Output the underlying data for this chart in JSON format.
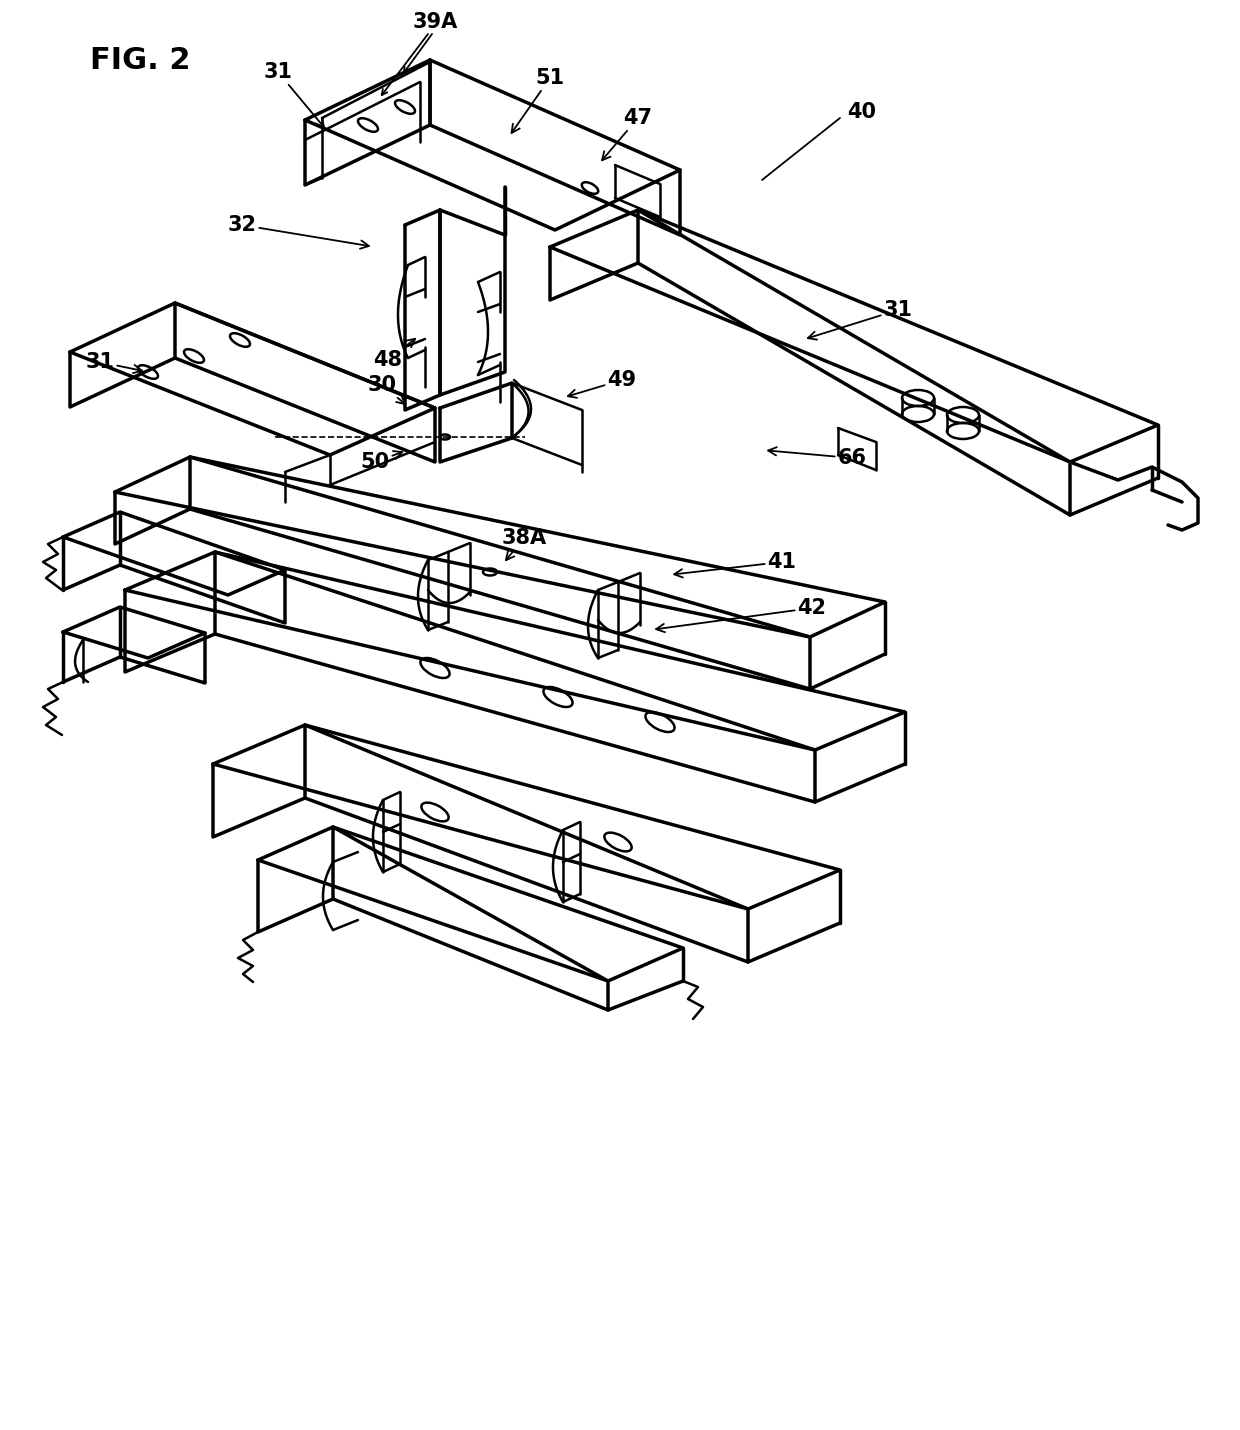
{
  "bg_color": "#ffffff",
  "line_color": "#000000",
  "lw": 1.8,
  "blw": 2.5,
  "fig_label": "FIG. 2",
  "label_fontsize": 15,
  "fig_fontsize": 22
}
